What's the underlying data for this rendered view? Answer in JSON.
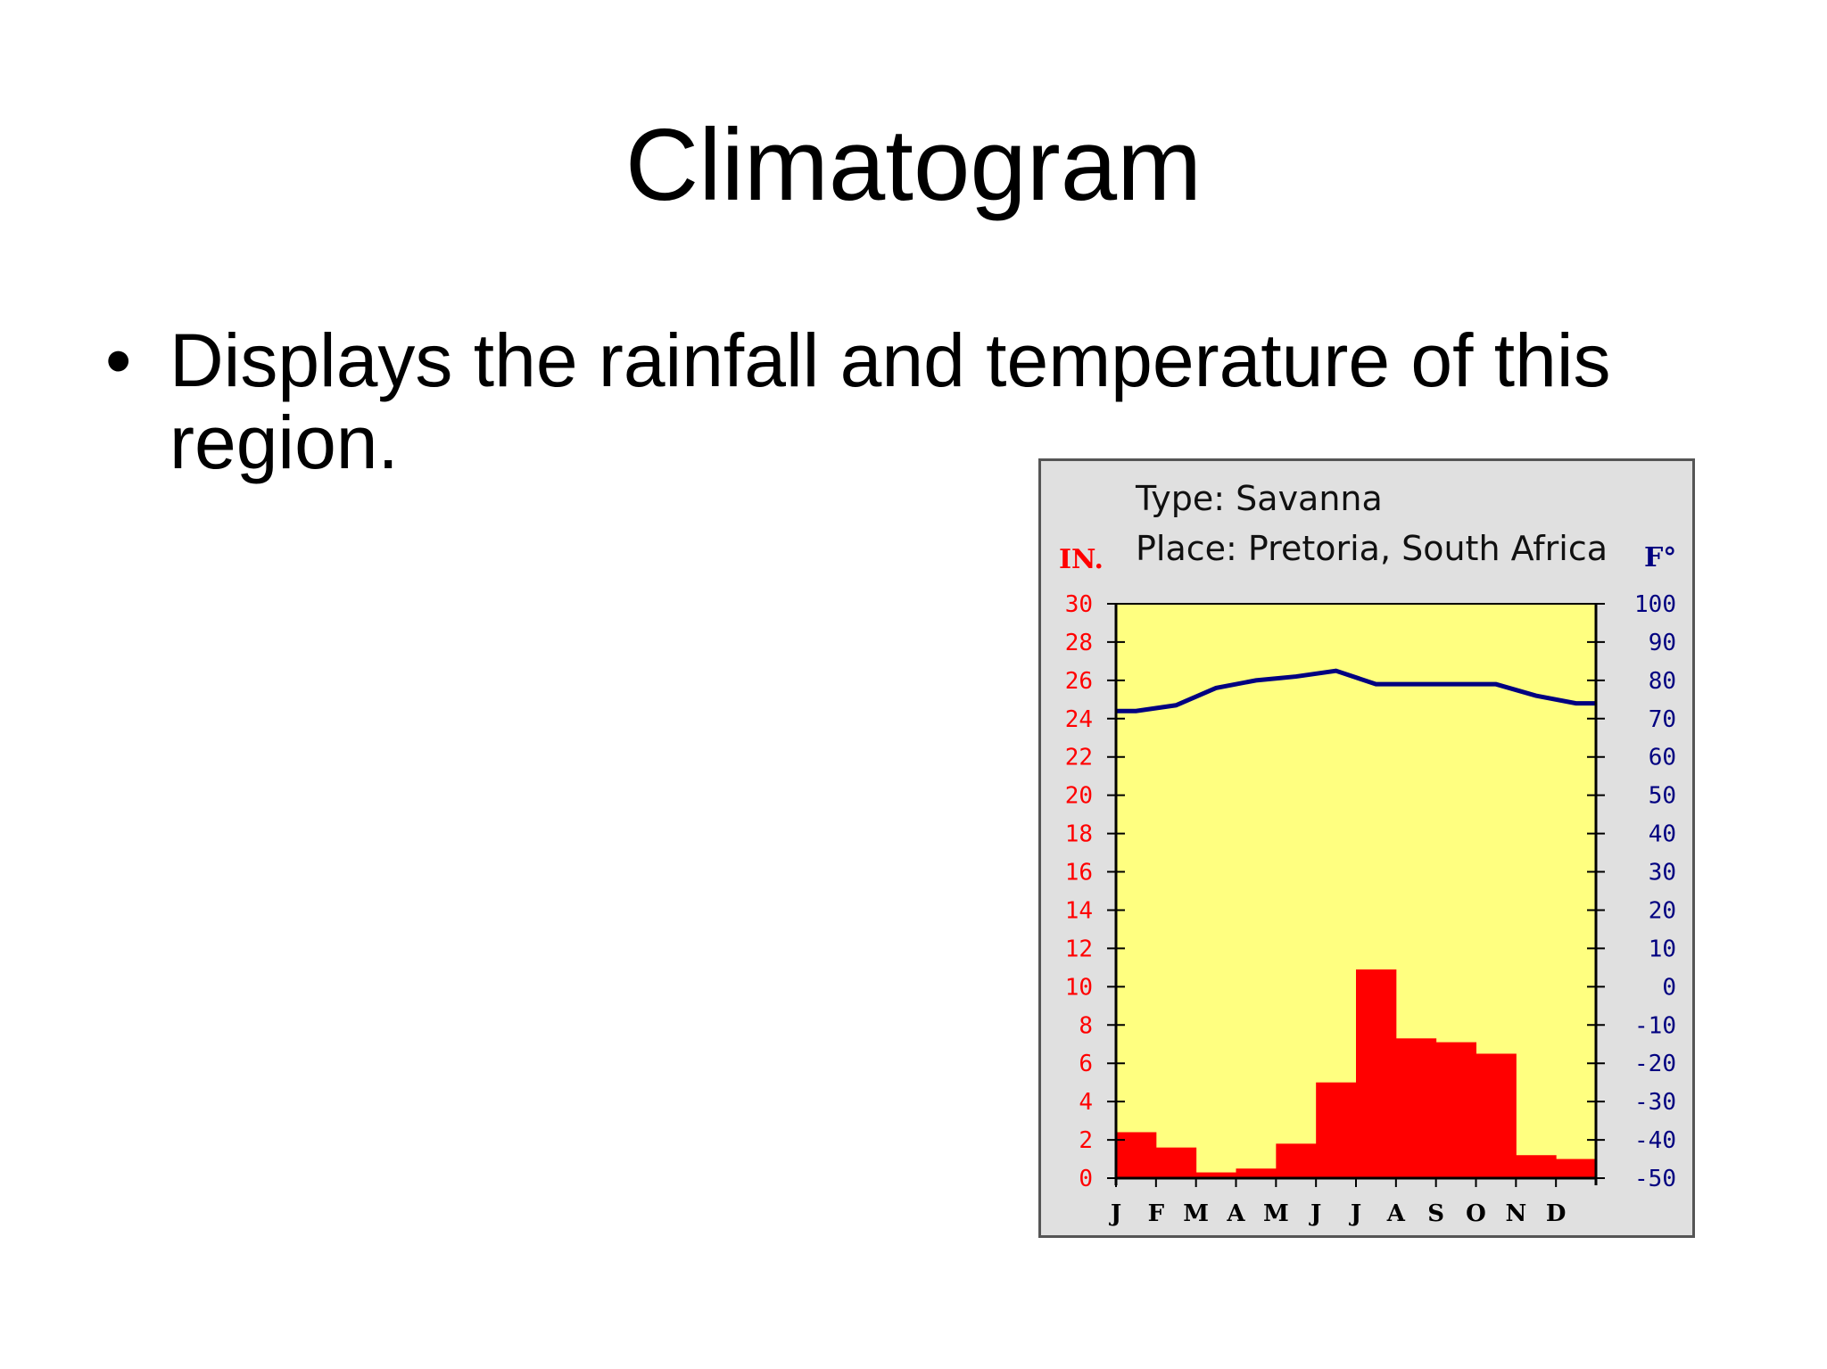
{
  "slide": {
    "title": "Climatogram",
    "bullet": "Displays the rainfall and temperature of this region."
  },
  "chart_data": {
    "type": "bar",
    "title_type": "Type: Savanna",
    "title_place": "Place: Pretoria, South Africa",
    "categories": [
      "J",
      "F",
      "M",
      "A",
      "M",
      "J",
      "J",
      "A",
      "S",
      "O",
      "N",
      "D"
    ],
    "rainfall_label": "IN.",
    "temperature_label": "F°",
    "series": [
      {
        "name": "Rainfall (in)",
        "kind": "bar",
        "axis": "left",
        "color": "#ff0000",
        "values": [
          2.4,
          1.6,
          0.3,
          0.5,
          1.8,
          5.0,
          10.9,
          7.3,
          7.1,
          6.5,
          1.2,
          1.0
        ]
      },
      {
        "name": "Temperature (F)",
        "kind": "line",
        "axis": "right",
        "color": "#000080",
        "values": [
          72,
          73.5,
          78,
          80,
          81,
          82.5,
          79,
          79,
          79,
          79,
          76,
          74
        ]
      }
    ],
    "left_axis": {
      "min": 0,
      "max": 30,
      "ticks": [
        "0",
        "2",
        "4",
        "6",
        "8",
        "10",
        "12",
        "14",
        "16",
        "18",
        "20",
        "22",
        "24",
        "26",
        "28",
        "30"
      ],
      "color": "#ff0000"
    },
    "right_axis": {
      "min": -50,
      "max": 100,
      "ticks": [
        "-50",
        "-40",
        "-30",
        "-20",
        "-10",
        "0",
        "10",
        "20",
        "30",
        "40",
        "50",
        "60",
        "70",
        "80",
        "90",
        "100"
      ],
      "color": "#000080"
    },
    "plot_background": "#ffff80",
    "frame_background": "#e0e0e0"
  }
}
